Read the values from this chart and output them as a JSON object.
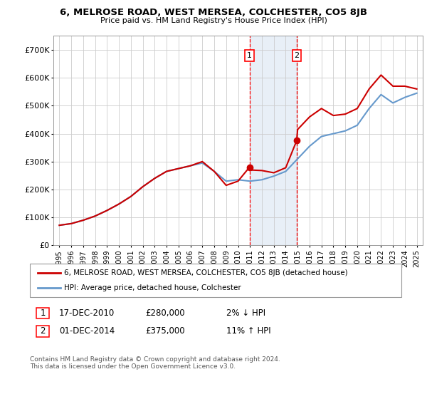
{
  "title": "6, MELROSE ROAD, WEST MERSEA, COLCHESTER, CO5 8JB",
  "subtitle": "Price paid vs. HM Land Registry's House Price Index (HPI)",
  "legend_line1": "6, MELROSE ROAD, WEST MERSEA, COLCHESTER, CO5 8JB (detached house)",
  "legend_line2": "HPI: Average price, detached house, Colchester",
  "footnote": "Contains HM Land Registry data © Crown copyright and database right 2024.\nThis data is licensed under the Open Government Licence v3.0.",
  "transaction1_date": "17-DEC-2010",
  "transaction1_price": "£280,000",
  "transaction1_hpi": "2% ↓ HPI",
  "transaction2_date": "01-DEC-2014",
  "transaction2_price": "£375,000",
  "transaction2_hpi": "11% ↑ HPI",
  "house_color": "#cc0000",
  "hpi_color": "#6699cc",
  "grid_color": "#cccccc",
  "ylim": [
    0,
    750000
  ],
  "yticks": [
    0,
    100000,
    200000,
    300000,
    400000,
    500000,
    600000,
    700000
  ],
  "ytick_labels": [
    "£0",
    "£100K",
    "£200K",
    "£300K",
    "£400K",
    "£500K",
    "£600K",
    "£700K"
  ],
  "transaction1_year": 2010.96,
  "transaction2_year": 2014.92,
  "t1_price": 280000,
  "t2_price": 375000,
  "hpi_years": [
    1995,
    1996,
    1997,
    1998,
    1999,
    2000,
    2001,
    2002,
    2003,
    2004,
    2005,
    2006,
    2007,
    2008,
    2009,
    2010,
    2011,
    2012,
    2013,
    2014,
    2015,
    2016,
    2017,
    2018,
    2019,
    2020,
    2021,
    2022,
    2023,
    2024,
    2025
  ],
  "hpi_values": [
    72000,
    78000,
    90000,
    105000,
    125000,
    148000,
    175000,
    210000,
    240000,
    265000,
    275000,
    285000,
    295000,
    265000,
    230000,
    235000,
    230000,
    235000,
    248000,
    265000,
    310000,
    355000,
    390000,
    400000,
    410000,
    430000,
    490000,
    540000,
    510000,
    530000,
    545000
  ],
  "house_years": [
    1995,
    1996,
    1997,
    1998,
    1999,
    2000,
    2001,
    2002,
    2003,
    2004,
    2005,
    2006,
    2007,
    2008,
    2009,
    2010,
    2010.96,
    2011,
    2012,
    2013,
    2014,
    2014.92,
    2015,
    2016,
    2017,
    2018,
    2019,
    2020,
    2021,
    2022,
    2023,
    2024,
    2025
  ],
  "house_values": [
    72000,
    78000,
    90000,
    105000,
    125000,
    148000,
    175000,
    210000,
    240000,
    265000,
    275000,
    285000,
    300000,
    265000,
    215000,
    230000,
    280000,
    270000,
    268000,
    260000,
    278000,
    375000,
    415000,
    460000,
    490000,
    465000,
    470000,
    490000,
    560000,
    610000,
    570000,
    570000,
    560000
  ]
}
